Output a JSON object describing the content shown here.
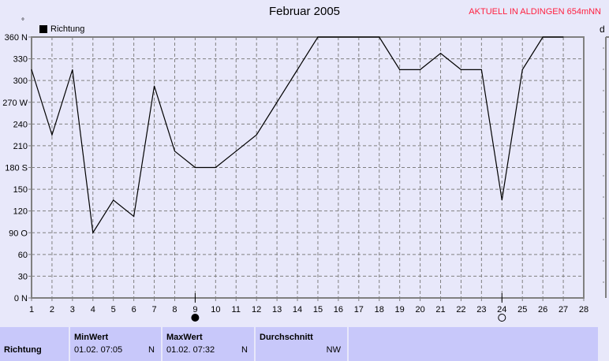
{
  "chart_data": {
    "type": "line",
    "title": "Februar 2005",
    "station": "AKTUELL IN ALDINGEN 654mNN",
    "unit": "°",
    "right_axis_label": "d",
    "legend": [
      {
        "name": "Richtung",
        "color": "#000000"
      }
    ],
    "x": [
      1,
      2,
      3,
      4,
      5,
      6,
      7,
      8,
      9,
      10,
      11,
      12,
      13,
      14,
      15,
      16,
      17,
      18,
      19,
      20,
      21,
      22,
      23,
      24,
      25,
      26,
      27
    ],
    "series": [
      {
        "name": "Richtung",
        "values": [
          315,
          225,
          315,
          90,
          135,
          112.5,
          292.5,
          202.5,
          180,
          180,
          202.5,
          225,
          270,
          315,
          360,
          360,
          360,
          360,
          315,
          315,
          337.5,
          315,
          315,
          135,
          315,
          360,
          360
        ]
      }
    ],
    "xlim": [
      1,
      28
    ],
    "ylim": [
      0,
      360
    ],
    "yticks": [
      "0  N",
      "30",
      "60",
      "90  O",
      "120",
      "150",
      "180 S",
      "210",
      "240",
      "270 W",
      "300",
      "330",
      "360 N"
    ],
    "xticks": [
      "1",
      "2",
      "3",
      "4",
      "5",
      "6",
      "7",
      "8",
      "9",
      "10",
      "11",
      "12",
      "13",
      "14",
      "15",
      "16",
      "17",
      "18",
      "19",
      "20",
      "21",
      "22",
      "23",
      "24",
      "25",
      "26",
      "27",
      "28"
    ],
    "grid": true,
    "moon_phases": [
      {
        "day": 9,
        "phase": "new-moon"
      },
      {
        "day": 24,
        "phase": "full-moon"
      }
    ]
  },
  "table": {
    "row_label": "Richtung",
    "min": {
      "header": "MinWert",
      "time": "01.02.  07:05",
      "value": "N"
    },
    "max": {
      "header": "MaxWert",
      "time": "01.02.  07:32",
      "value": "N"
    },
    "avg": {
      "header": "Durchschnitt",
      "value": "NW"
    }
  }
}
